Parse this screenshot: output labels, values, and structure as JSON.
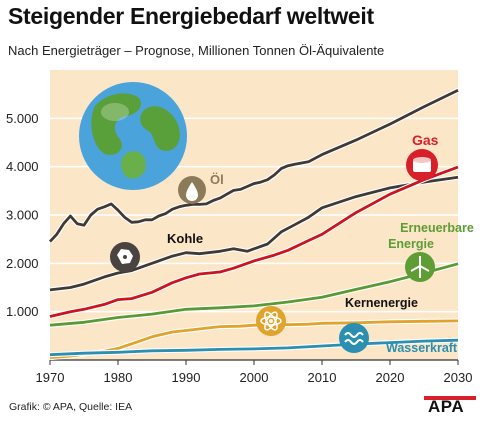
{
  "title": "Steigender Energiebedarf weltweit",
  "subtitle": "Nach Energieträger – Prognose, Millionen Tonnen Öl-Äquivalente",
  "source": "Grafik: © APA, Quelle: IEA",
  "logo": "APA",
  "colors": {
    "background": "#fbe6c8",
    "grid": "#ffffff",
    "accent": "#d8202a"
  },
  "chart_data": {
    "type": "line",
    "xlim": [
      1970,
      2030
    ],
    "ylim": [
      0,
      6000
    ],
    "x_ticks": [
      1970,
      1980,
      1990,
      2000,
      2010,
      2020,
      2030
    ],
    "y_ticks": [
      {
        "value": 1000,
        "label": "1.000"
      },
      {
        "value": 2000,
        "label": "2.000"
      },
      {
        "value": 3000,
        "label": "3.000"
      },
      {
        "value": 4000,
        "label": "4.000"
      },
      {
        "value": 5000,
        "label": "5.000"
      }
    ],
    "grid": true,
    "series": [
      {
        "name": "Öl",
        "color": "#3f3a36",
        "label_color": "#8c7b58",
        "icon": "oil-drop-icon",
        "points": [
          [
            1970,
            2450
          ],
          [
            1971,
            2600
          ],
          [
            1972,
            2820
          ],
          [
            1973,
            2980
          ],
          [
            1974,
            2820
          ],
          [
            1975,
            2790
          ],
          [
            1976,
            3000
          ],
          [
            1977,
            3120
          ],
          [
            1978,
            3170
          ],
          [
            1979,
            3230
          ],
          [
            1980,
            3100
          ],
          [
            1981,
            2950
          ],
          [
            1982,
            2850
          ],
          [
            1983,
            2860
          ],
          [
            1984,
            2900
          ],
          [
            1985,
            2900
          ],
          [
            1986,
            2980
          ],
          [
            1987,
            3030
          ],
          [
            1988,
            3120
          ],
          [
            1989,
            3170
          ],
          [
            1990,
            3200
          ],
          [
            1991,
            3220
          ],
          [
            1992,
            3220
          ],
          [
            1993,
            3230
          ],
          [
            1994,
            3300
          ],
          [
            1995,
            3350
          ],
          [
            1996,
            3430
          ],
          [
            1997,
            3510
          ],
          [
            1998,
            3530
          ],
          [
            1999,
            3590
          ],
          [
            2000,
            3650
          ],
          [
            2001,
            3680
          ],
          [
            2002,
            3730
          ],
          [
            2003,
            3830
          ],
          [
            2004,
            3960
          ],
          [
            2005,
            4020
          ],
          [
            2006,
            4050
          ],
          [
            2008,
            4100
          ],
          [
            2010,
            4250
          ],
          [
            2015,
            4550
          ],
          [
            2020,
            4880
          ],
          [
            2025,
            5240
          ],
          [
            2030,
            5580
          ]
        ]
      },
      {
        "name": "Gas",
        "color": "#c9161d",
        "label_color": "#d8202a",
        "icon": "gas-tank-icon",
        "points": [
          [
            1970,
            900
          ],
          [
            1973,
            1000
          ],
          [
            1975,
            1050
          ],
          [
            1978,
            1150
          ],
          [
            1980,
            1250
          ],
          [
            1982,
            1270
          ],
          [
            1985,
            1400
          ],
          [
            1988,
            1600
          ],
          [
            1990,
            1700
          ],
          [
            1992,
            1780
          ],
          [
            1995,
            1820
          ],
          [
            1997,
            1900
          ],
          [
            2000,
            2050
          ],
          [
            2003,
            2170
          ],
          [
            2005,
            2270
          ],
          [
            2008,
            2470
          ],
          [
            2010,
            2600
          ],
          [
            2015,
            3050
          ],
          [
            2020,
            3430
          ],
          [
            2025,
            3730
          ],
          [
            2030,
            3990
          ]
        ]
      },
      {
        "name": "Kohle",
        "color": "#3f3a36",
        "label_color": "#111111",
        "icon": "coal-icon",
        "points": [
          [
            1970,
            1450
          ],
          [
            1973,
            1500
          ],
          [
            1975,
            1570
          ],
          [
            1978,
            1720
          ],
          [
            1980,
            1800
          ],
          [
            1982,
            1850
          ],
          [
            1985,
            2000
          ],
          [
            1988,
            2150
          ],
          [
            1990,
            2220
          ],
          [
            1992,
            2200
          ],
          [
            1995,
            2250
          ],
          [
            1997,
            2300
          ],
          [
            1999,
            2250
          ],
          [
            2000,
            2300
          ],
          [
            2002,
            2400
          ],
          [
            2004,
            2650
          ],
          [
            2006,
            2800
          ],
          [
            2008,
            2950
          ],
          [
            2010,
            3150
          ],
          [
            2015,
            3380
          ],
          [
            2020,
            3560
          ],
          [
            2025,
            3680
          ],
          [
            2030,
            3780
          ]
        ]
      },
      {
        "name": "Erneuerbare Energie",
        "color": "#5a9a35",
        "label_color": "#5e9c34",
        "icon": "wind-turbine-icon",
        "points": [
          [
            1970,
            720
          ],
          [
            1975,
            780
          ],
          [
            1980,
            880
          ],
          [
            1985,
            950
          ],
          [
            1990,
            1050
          ],
          [
            1995,
            1080
          ],
          [
            2000,
            1120
          ],
          [
            2005,
            1200
          ],
          [
            2010,
            1300
          ],
          [
            2015,
            1460
          ],
          [
            2020,
            1620
          ],
          [
            2025,
            1800
          ],
          [
            2030,
            1990
          ]
        ]
      },
      {
        "name": "Kernenergie",
        "color": "#e0a32b",
        "label_color": "#111111",
        "icon": "atom-icon",
        "points": [
          [
            1970,
            50
          ],
          [
            1973,
            80
          ],
          [
            1975,
            120
          ],
          [
            1978,
            180
          ],
          [
            1980,
            240
          ],
          [
            1983,
            380
          ],
          [
            1985,
            480
          ],
          [
            1988,
            580
          ],
          [
            1990,
            610
          ],
          [
            1993,
            660
          ],
          [
            1995,
            690
          ],
          [
            1998,
            700
          ],
          [
            2000,
            720
          ],
          [
            2003,
            740
          ],
          [
            2005,
            730
          ],
          [
            2008,
            740
          ],
          [
            2010,
            760
          ],
          [
            2015,
            770
          ],
          [
            2020,
            790
          ],
          [
            2025,
            800
          ],
          [
            2030,
            810
          ]
        ]
      },
      {
        "name": "Wasserkraft",
        "color": "#2a8fb0",
        "label_color": "#2a8fb0",
        "icon": "water-wave-icon",
        "points": [
          [
            1970,
            110
          ],
          [
            1975,
            140
          ],
          [
            1980,
            160
          ],
          [
            1985,
            190
          ],
          [
            1990,
            200
          ],
          [
            1995,
            220
          ],
          [
            2000,
            230
          ],
          [
            2005,
            250
          ],
          [
            2010,
            290
          ],
          [
            2015,
            330
          ],
          [
            2020,
            360
          ],
          [
            2025,
            390
          ],
          [
            2030,
            410
          ]
        ]
      }
    ]
  }
}
